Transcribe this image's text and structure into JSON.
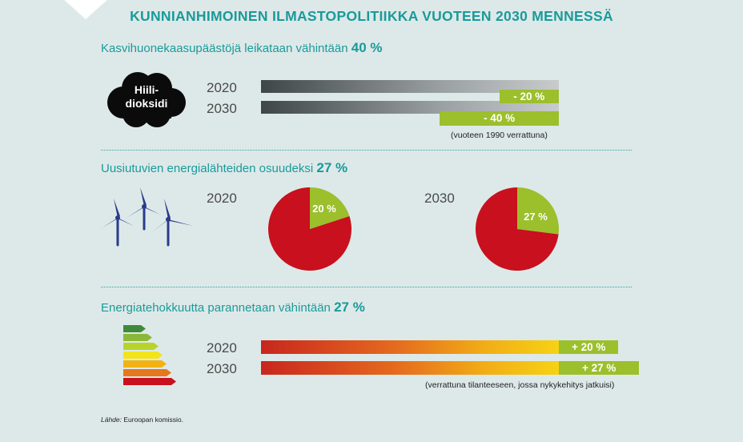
{
  "title": "KUNNIANHIMOINEN ILMASTOPOLITIIKKA VUOTEEN 2030 MENNESSÄ",
  "section1": {
    "heading": "Kasvihuonekaasupäästöjä leikataan vähintään",
    "heading_value": "40 %",
    "cloud_line1": "Hiili-",
    "cloud_line2": "dioksidi",
    "note": "(vuoteen 1990 verrattuna)"
  },
  "section2": {
    "heading": "Uusiutuvien energialähteiden osuudeksi",
    "heading_value": "27 %"
  },
  "section3": {
    "heading": "Energiatehokkuutta parannetaan vähintään",
    "heading_value": "27 %",
    "note": "(verrattuna tilanteeseen, jossa nykykehitys jatkuisi)"
  },
  "source": {
    "label": "Lähde:",
    "text": "Euroopan komissio."
  },
  "colors": {
    "teal": "#1a9a9a",
    "green": "#9cbf2c",
    "red": "#c8101e",
    "navy": "#2b3a8c"
  },
  "chart_data": [
    {
      "type": "bar",
      "title": "Kasvihuonekaasupäästöjä leikataan vähintään 40 %",
      "categories": [
        "2020",
        "2030"
      ],
      "values": [
        -20,
        -40
      ],
      "labels": [
        "- 20 %",
        "- 40 %"
      ],
      "unit": "%",
      "note": "(vuoteen 1990 verrattuna)"
    },
    {
      "type": "pie",
      "title": "Uusiutuvien energialähteiden osuudeksi 27 %",
      "pies": [
        {
          "year": "2020",
          "renewable_share": 20,
          "label": "20 %"
        },
        {
          "year": "2030",
          "renewable_share": 27,
          "label": "27 %"
        }
      ]
    },
    {
      "type": "bar",
      "title": "Energiatehokkuutta parannetaan vähintään 27 %",
      "categories": [
        "2020",
        "2030"
      ],
      "values": [
        20,
        27
      ],
      "labels": [
        "+ 20 %",
        "+ 27 %"
      ],
      "unit": "%",
      "note": "(verrattuna tilanteeseen, jossa nykykehitys jatkuisi)"
    }
  ]
}
